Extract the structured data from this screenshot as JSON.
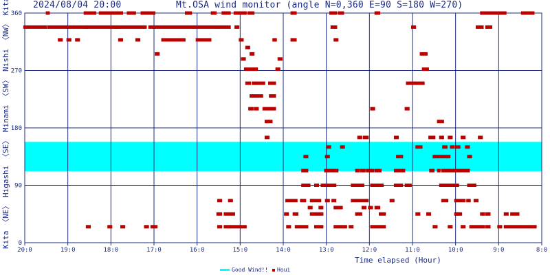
{
  "header": {
    "datetime": "2024/08/04 20:00",
    "title": "Mt.OSA wind monitor (angle N=0,360 E=90 S=180 W=270)"
  },
  "y_direction_labels": [
    "Kita 〈NE〉 Higashi 〈SE〉 Minami 〈SW〉 Nishi 〈NW〉 Kita"
  ],
  "xlabel": "Time elapsed (Hour)",
  "legend": {
    "good": "Good Wind!!",
    "houi": "Houi"
  },
  "colors": {
    "band": "#00ffff",
    "point": "#bb0000",
    "grid": "#1a2a80",
    "text": "#1a2a80"
  },
  "chart_data": {
    "type": "scatter",
    "title": "Mt.OSA wind monitor (angle N=0,360 E=90 S=180 W=270)",
    "xlabel": "Time elapsed (Hour)",
    "ylabel": "Kita 〈NE〉 Higashi 〈SE〉 Minami 〈SW〉 Nishi 〈NW〉 Kita",
    "x_ticks": [
      "20:0",
      "19:0",
      "18:0",
      "17:0",
      "16:0",
      "15:0",
      "14:0",
      "13:0",
      "12:0",
      "11:0",
      "10:0",
      "9:0",
      "8:0"
    ],
    "x_range_hours_elapsed": [
      0,
      12
    ],
    "y_ticks": [
      0,
      90,
      180,
      270,
      360
    ],
    "ylim": [
      0,
      360
    ],
    "grid": true,
    "good_wind_band": [
      112,
      158
    ],
    "series": [
      {
        "name": "Houi",
        "runs": [
          [
            0.0,
            0.48,
            338
          ],
          [
            0.55,
            1.42,
            338
          ],
          [
            1.45,
            2.12,
            338
          ],
          [
            2.15,
            2.8,
            338
          ],
          [
            2.9,
            4.4,
            338
          ],
          [
            4.45,
            4.75,
            338
          ],
          [
            4.9,
            4.95,
            338
          ],
          [
            7.13,
            7.22,
            338
          ],
          [
            9.0,
            9.05,
            338
          ],
          [
            10.5,
            10.62,
            338
          ],
          [
            10.72,
            10.82,
            338
          ],
          [
            0.52,
            0.55,
            360
          ],
          [
            1.4,
            1.63,
            360
          ],
          [
            1.75,
            2.25,
            360
          ],
          [
            2.4,
            2.55,
            360
          ],
          [
            2.72,
            3.0,
            360
          ],
          [
            3.75,
            3.85,
            360
          ],
          [
            4.35,
            4.42,
            360
          ],
          [
            4.6,
            4.75,
            360
          ],
          [
            4.88,
            5.12,
            360
          ],
          [
            5.2,
            5.3,
            360
          ],
          [
            6.2,
            6.28,
            360
          ],
          [
            7.1,
            7.22,
            360
          ],
          [
            7.3,
            7.38,
            360
          ],
          [
            8.15,
            8.22,
            360
          ],
          [
            10.6,
            11.15,
            360
          ],
          [
            11.55,
            11.8,
            360
          ],
          [
            0.8,
            0.85,
            318
          ],
          [
            1.0,
            1.05,
            318
          ],
          [
            1.2,
            1.25,
            318
          ],
          [
            2.2,
            2.25,
            318
          ],
          [
            2.6,
            2.65,
            318
          ],
          [
            3.2,
            3.7,
            318
          ],
          [
            4.0,
            4.2,
            318
          ],
          [
            4.25,
            4.3,
            318
          ],
          [
            5.0,
            5.05,
            318
          ],
          [
            5.78,
            5.82,
            318
          ],
          [
            6.2,
            6.28,
            318
          ],
          [
            7.2,
            7.25,
            318
          ],
          [
            3.05,
            3.1,
            296
          ],
          [
            5.15,
            5.2,
            306
          ],
          [
            5.25,
            5.3,
            296
          ],
          [
            5.05,
            5.1,
            288
          ],
          [
            5.9,
            5.95,
            288
          ],
          [
            9.2,
            9.32,
            296
          ],
          [
            5.12,
            5.38,
            272
          ],
          [
            5.85,
            5.9,
            272
          ],
          [
            9.25,
            9.35,
            272
          ],
          [
            5.15,
            5.22,
            250
          ],
          [
            5.3,
            5.35,
            250
          ],
          [
            5.38,
            5.55,
            250
          ],
          [
            5.68,
            5.8,
            250
          ],
          [
            8.88,
            9.25,
            250
          ],
          [
            5.25,
            5.3,
            230
          ],
          [
            5.35,
            5.5,
            230
          ],
          [
            5.7,
            5.8,
            230
          ],
          [
            5.22,
            5.28,
            210
          ],
          [
            5.35,
            5.4,
            210
          ],
          [
            5.55,
            5.8,
            210
          ],
          [
            8.05,
            8.1,
            210
          ],
          [
            8.85,
            8.9,
            210
          ],
          [
            5.6,
            5.72,
            190
          ],
          [
            9.6,
            9.7,
            190
          ],
          [
            5.6,
            5.65,
            165
          ],
          [
            7.75,
            7.8,
            165
          ],
          [
            7.88,
            7.95,
            165
          ],
          [
            8.6,
            8.65,
            165
          ],
          [
            9.4,
            9.5,
            165
          ],
          [
            9.65,
            9.7,
            165
          ],
          [
            9.85,
            9.9,
            165
          ],
          [
            10.15,
            10.2,
            165
          ],
          [
            10.55,
            10.6,
            165
          ],
          [
            7.03,
            7.08,
            150
          ],
          [
            7.35,
            7.4,
            150
          ],
          [
            9.1,
            9.2,
            150
          ],
          [
            9.72,
            9.78,
            150
          ],
          [
            9.9,
            9.95,
            150
          ],
          [
            10.02,
            10.08,
            150
          ],
          [
            10.25,
            10.3,
            150
          ],
          [
            6.5,
            6.55,
            135
          ],
          [
            7.0,
            7.05,
            135
          ],
          [
            8.65,
            8.75,
            135
          ],
          [
            9.5,
            9.85,
            135
          ],
          [
            10.3,
            10.35,
            135
          ],
          [
            6.45,
            6.55,
            113
          ],
          [
            6.98,
            7.25,
            113
          ],
          [
            7.7,
            7.75,
            113
          ],
          [
            7.82,
            7.88,
            113
          ],
          [
            7.95,
            8.08,
            113
          ],
          [
            8.15,
            8.25,
            113
          ],
          [
            8.6,
            8.8,
            113
          ],
          [
            9.42,
            9.48,
            113
          ],
          [
            9.62,
            9.6,
            113
          ],
          [
            9.7,
            10.3,
            113
          ],
          [
            6.45,
            6.6,
            90
          ],
          [
            6.75,
            6.8,
            90
          ],
          [
            6.9,
            7.0,
            90
          ],
          [
            7.05,
            7.2,
            90
          ],
          [
            7.6,
            7.85,
            90
          ],
          [
            8.05,
            8.1,
            90
          ],
          [
            8.15,
            8.3,
            90
          ],
          [
            8.6,
            8.75,
            90
          ],
          [
            8.85,
            8.95,
            90
          ],
          [
            9.65,
            10.05,
            90
          ],
          [
            10.3,
            10.45,
            90
          ],
          [
            6.08,
            6.3,
            66
          ],
          [
            6.42,
            6.5,
            66
          ],
          [
            6.65,
            6.85,
            66
          ],
          [
            7.0,
            7.05,
            66
          ],
          [
            7.15,
            7.2,
            66
          ],
          [
            7.6,
            7.95,
            66
          ],
          [
            8.5,
            8.55,
            66
          ],
          [
            9.7,
            9.8,
            66
          ],
          [
            10.0,
            10.2,
            66
          ],
          [
            10.28,
            10.32,
            66
          ],
          [
            10.45,
            10.5,
            66
          ],
          [
            4.5,
            4.55,
            66
          ],
          [
            4.75,
            4.8,
            66
          ],
          [
            7.2,
            7.25,
            55
          ],
          [
            7.3,
            7.35,
            55
          ],
          [
            6.6,
            6.65,
            55
          ],
          [
            6.85,
            6.9,
            55
          ],
          [
            7.85,
            7.9,
            55
          ],
          [
            8.0,
            8.05,
            55
          ],
          [
            8.15,
            8.22,
            55
          ],
          [
            4.48,
            4.55,
            45
          ],
          [
            4.65,
            4.85,
            45
          ],
          [
            6.05,
            6.1,
            45
          ],
          [
            6.25,
            6.32,
            45
          ],
          [
            6.65,
            6.75,
            45
          ],
          [
            6.8,
            6.9,
            45
          ],
          [
            7.7,
            7.8,
            45
          ],
          [
            8.25,
            8.35,
            45
          ],
          [
            9.1,
            9.15,
            45
          ],
          [
            9.35,
            9.4,
            45
          ],
          [
            10.0,
            10.05,
            45
          ],
          [
            10.05,
            10.12,
            45
          ],
          [
            10.6,
            10.65,
            45
          ],
          [
            10.72,
            10.78,
            45
          ],
          [
            11.15,
            11.2,
            45
          ],
          [
            11.3,
            11.45,
            45
          ],
          [
            4.5,
            4.55,
            25
          ],
          [
            4.65,
            4.75,
            25
          ],
          [
            4.8,
            5.12,
            25
          ],
          [
            6.1,
            6.15,
            25
          ],
          [
            6.3,
            6.55,
            25
          ],
          [
            6.75,
            6.9,
            25
          ],
          [
            7.2,
            7.45,
            25
          ],
          [
            7.55,
            7.6,
            25
          ],
          [
            8.05,
            8.35,
            25
          ],
          [
            9.5,
            9.55,
            25
          ],
          [
            9.85,
            9.9,
            25
          ],
          [
            10.15,
            10.2,
            25
          ],
          [
            10.35,
            10.65,
            25
          ],
          [
            10.72,
            10.78,
            25
          ],
          [
            11.0,
            11.05,
            25
          ],
          [
            11.15,
            11.5,
            25
          ],
          [
            11.55,
            11.85,
            25
          ],
          [
            1.45,
            1.5,
            25
          ],
          [
            1.95,
            2.0,
            25
          ],
          [
            2.25,
            2.3,
            25
          ],
          [
            2.8,
            2.85,
            25
          ],
          [
            2.95,
            3.05,
            25
          ]
        ]
      }
    ]
  }
}
